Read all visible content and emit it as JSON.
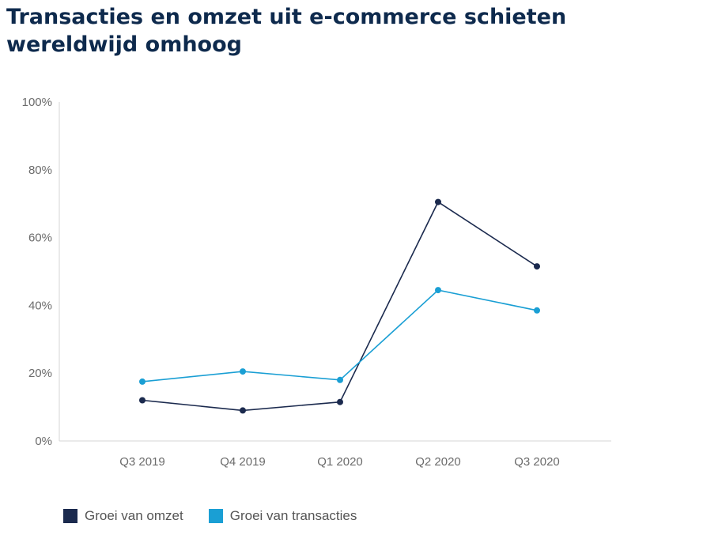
{
  "chart_data": {
    "type": "line",
    "title": "Transacties en omzet uit e-commerce schieten wereldwijd omhoog",
    "categories": [
      "Q3 2019",
      "Q4 2019",
      "Q1 2020",
      "Q2 2020",
      "Q3 2020"
    ],
    "ylim": [
      0,
      100
    ],
    "yticks": [
      0,
      20,
      40,
      60,
      80,
      100
    ],
    "ytick_labels": [
      "0%",
      "20%",
      "40%",
      "60%",
      "80%",
      "100%"
    ],
    "grid": false,
    "legend_position": "bottom-left",
    "series": [
      {
        "name": "Groei van omzet",
        "color": "#1b2a4e",
        "values": [
          12,
          9,
          11.5,
          70.5,
          51.5
        ]
      },
      {
        "name": "Groei van transacties",
        "color": "#1a9fd4",
        "values": [
          17.5,
          20.5,
          18,
          44.5,
          38.5
        ]
      }
    ]
  }
}
